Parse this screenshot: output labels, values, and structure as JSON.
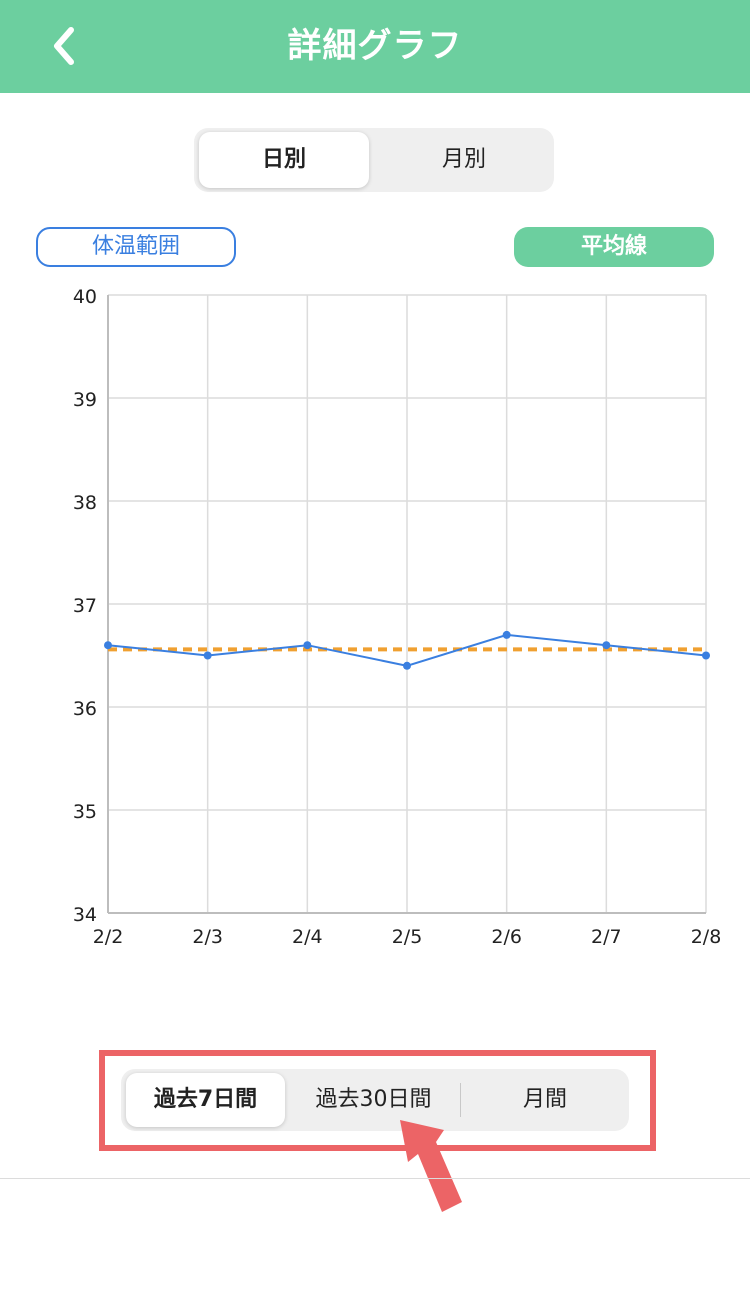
{
  "header": {
    "title": "詳細グラフ",
    "back_icon": "chevron-left-icon"
  },
  "period_toggle": {
    "options": [
      "日別",
      "月別"
    ],
    "selected": "日別"
  },
  "range_button_label": "体温範囲",
  "average_button_label": "平均線",
  "colors": {
    "header_green": "#6ccf9f",
    "series_blue": "#3a7fe0",
    "average_orange": "#f0a030",
    "highlight_red": "#ec6466"
  },
  "chart_data": {
    "type": "line",
    "x": [
      "2/2",
      "2/3",
      "2/4",
      "2/5",
      "2/6",
      "2/7",
      "2/8"
    ],
    "series": [
      {
        "values": [
          36.6,
          36.5,
          36.6,
          36.4,
          36.7,
          36.6,
          36.5
        ]
      }
    ],
    "average_line": 36.56,
    "ylim": [
      34,
      40
    ],
    "yticks": [
      34,
      35,
      36,
      37,
      38,
      39,
      40
    ],
    "grid": true,
    "title": "",
    "xlabel": "",
    "ylabel": ""
  },
  "range_toggle": {
    "options": [
      "過去7日間",
      "過去30日間",
      "月間"
    ],
    "selected": "過去7日間"
  }
}
